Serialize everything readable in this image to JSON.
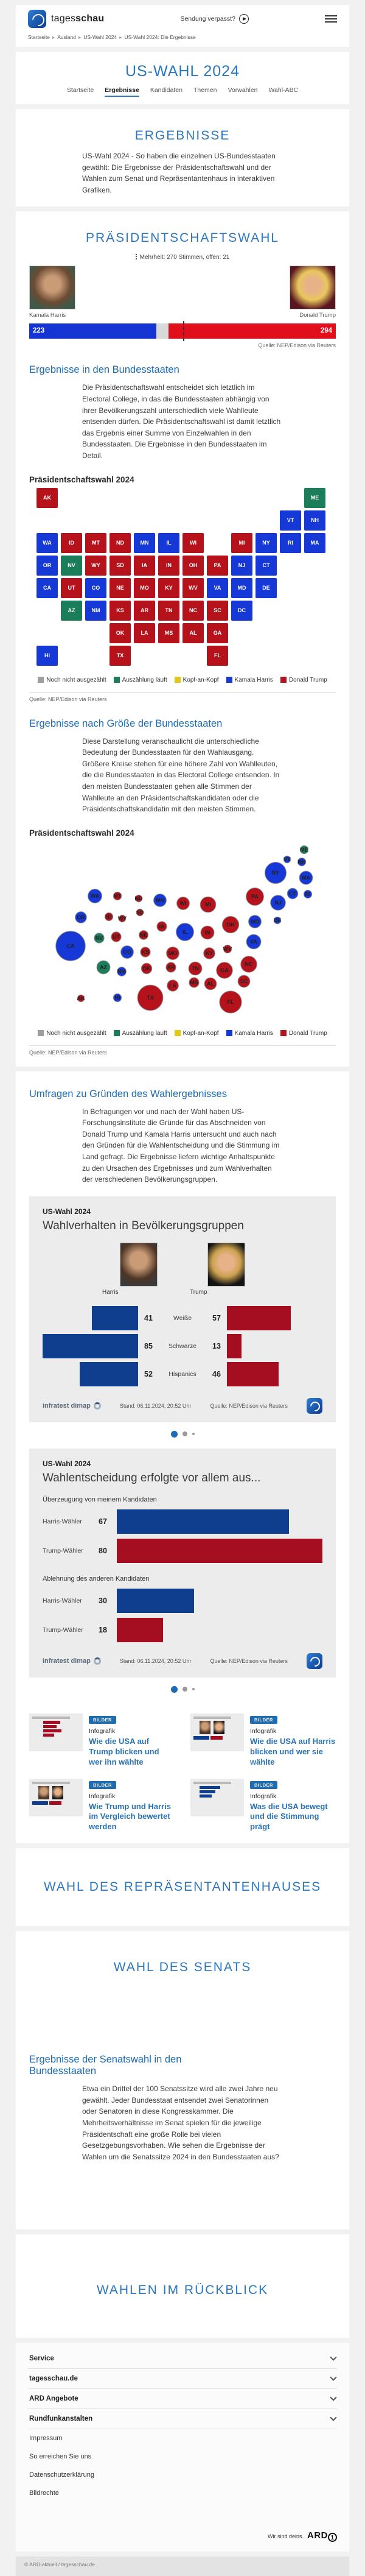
{
  "header": {
    "wordmark_light": "tages",
    "wordmark_bold": "schau",
    "watch_label": "Sendung verpasst?"
  },
  "breadcrumb": [
    "Startseite",
    "Ausland",
    "US-Wahl 2024",
    "US-Wahl 2024: Die Ergebnisse"
  ],
  "page_title": "US-WAHL 2024",
  "subnav": [
    {
      "label": "Startseite",
      "active": false
    },
    {
      "label": "Ergebnisse",
      "active": true
    },
    {
      "label": "Kandidaten",
      "active": false
    },
    {
      "label": "Themen",
      "active": false
    },
    {
      "label": "Vorwahlen",
      "active": false
    },
    {
      "label": "Wahl-ABC",
      "active": false
    }
  ],
  "ergebnisse": {
    "heading": "ERGEBNISSE",
    "intro": "US-Wahl 2024 - So haben die einzelnen US-Bundesstaaten gewählt: Die Ergebnisse der Präsidentschaftswahl und der Wahlen zum Senat und Repräsentantenhaus in interaktiven Grafiken."
  },
  "praesidentschaftswahl": {
    "heading": "PRÄSIDENTSCHAFTSWAHL",
    "majority_note": "Mehrheit: 270 Stimmen, offen: 21",
    "harris_name": "Kamala Harris",
    "trump_name": "Donald Trump",
    "source": "Quelle: NEP/Edison via Reuters",
    "states_heading": "Ergebnisse in den Bundesstaaten",
    "states_text": "Die Präsidentschaftswahl entscheidet sich letztlich im Electoral College, in das die Bundesstaaten abhängig von ihrer Bevölkerungszahl unterschiedlich viele Wahlleute entsenden dürfen. Die Präsidentschaftswahl ist damit letztlich das Ergebnis einer Summe von Einzelwahlen in den Bundesstaaten. Die Ergebnisse in den Bundesstaaten im Detail.",
    "map_title": "Präsidentschaftswahl 2024",
    "size_heading": "Ergebnisse nach Größe der Bundesstaaten",
    "size_text": "Diese Darstellung veranschaulicht die unterschiedliche Bedeutung der Bundesstaaten für den Wahlausgang. Größere Kreise stehen für eine höhere Zahl von Wahlleuten, die die Bundesstaaten in das Electoral College entsenden. In den meisten Bundesstaaten gehen alle Stimmen der Wahlleute an den Präsidentschaftskandidaten oder die Präsidentschaftskandidatin mit den meisten Stimmen.",
    "bubble_title": "Präsidentschaftswahl 2024"
  },
  "umfragen": {
    "heading": "Umfragen zu Gründen des Wahlergebnisses",
    "text": "In Befragungen vor und nach der Wahl haben US-Forschungsinstitute die Gründe für das Abschneiden von Donald Trump und Kamala Harris untersucht und auch nach den Gründen für die Wahlentscheidung und die Stimmung im Land gefragt. Die Ergebnisse liefern wichtige Anhaltspunkte zu den Ursachen des Ergebnisses und zum Wahlverhalten der verschiedenen Bevölkerungsgruppen."
  },
  "infographic1": {
    "kicker": "US-Wahl 2024",
    "title": "Wahlverhalten in Bevölkerungsgruppen",
    "harris_label": "Harris",
    "trump_label": "Trump",
    "stand": "Stand:  06.11.2024, 20:52 Uhr",
    "quelle": "Quelle: NEP/Edison via Reuters",
    "brand": "infratest dimap"
  },
  "infographic2": {
    "kicker": "US-Wahl 2024",
    "title": "Wahlentscheidung erfolgte vor allem aus...",
    "stand": "Stand:  06.11.2024, 20:52 Uhr",
    "quelle": "Quelle: NEP/Edison via Reuters",
    "brand": "infratest dimap"
  },
  "teasers": [
    {
      "badge": "BILDER",
      "category": "Infografik",
      "title": "Wie die USA auf Trump blicken und wer ihn wählte",
      "thumb": "bars"
    },
    {
      "badge": "BILDER",
      "category": "Infografik",
      "title": "Wie die USA auf Harris blicken und wer sie wählte",
      "thumb": "photos"
    },
    {
      "badge": "BILDER",
      "category": "Infografik",
      "title": "Wie Trump und Harris im Vergleich bewertet werden",
      "thumb": "compare"
    },
    {
      "badge": "BILDER",
      "category": "Infografik",
      "title": "Was die USA bewegt und die Stimmung prägt",
      "thumb": "mood"
    }
  ],
  "haus": {
    "heading": "WAHL DES REPRÄSENTANTENHAUSES"
  },
  "senat": {
    "heading": "WAHL DES SENATS",
    "sub_heading": "Ergebnisse der Senatswahl in den Bundesstaaten",
    "text": "Etwa ein Drittel der 100 Senatssitze wird alle zwei Jahre neu gewählt. Jeder Bundesstaat entsendet zwei Senatorinnen oder Senatoren in diese Kongresskammer. Die Mehrheitsverhältnisse im Senat spielen für die jeweilige Präsidentschaft eine große Rolle bei vielen Gesetzgebungsvorhaben. Wie sehen die Ergebnisse der Wahlen um die Senatssitze 2024 in den Bundesstaaten aus?"
  },
  "rueckblick": {
    "heading": "WAHLEN IM RÜCKBLICK"
  },
  "footer": {
    "accordions": [
      "Service",
      "tagesschau.de",
      "ARD Angebote",
      "Rundfunkanstalten"
    ],
    "links": [
      "Impressum",
      "So erreichen Sie uns",
      "Datenschutzerklärung",
      "Bildrechte"
    ],
    "ard_tagline": "Wir sind deins.",
    "ard_logo": "ARD",
    "copyright": "© ARD-aktuell / tagesschau.de"
  },
  "colors": {
    "harris": "#1538d6",
    "harris_bar": "#1435d1",
    "trump": "#b5121b",
    "trump_bar": "#e10e1b",
    "counting": "#1b7e5a",
    "tossup": "#e5c713",
    "uncounted": "#9e9e9e",
    "open_gap": "#d9d9d9",
    "ig_blue": "#0e3e8d",
    "ig_red": "#a50d20"
  },
  "chart_data": [
    {
      "type": "bar",
      "title": "Electoral College Ergebnis",
      "categories": [
        "Kamala Harris",
        "offen",
        "Donald Trump"
      ],
      "values": [
        223,
        21,
        294
      ],
      "total": 538,
      "majority_marker": 270
    },
    {
      "type": "heatmap",
      "title": "Präsidentschaftswahl 2024 — Karte der Bundesstaaten",
      "legend": [
        {
          "label": "Noch nicht ausgezählt",
          "key": "uncounted"
        },
        {
          "label": "Auszählung läuft",
          "key": "counting"
        },
        {
          "label": "Kopf-an-Kopf",
          "key": "tossup"
        },
        {
          "label": "Kamala Harris",
          "key": "harris"
        },
        {
          "label": "Donald Trump",
          "key": "trump"
        }
      ],
      "states": [
        {
          "abbr": "AK",
          "party": "trump",
          "ev": 3,
          "grid": [
            0,
            0
          ],
          "bubble": [
            85,
            258,
            "s"
          ]
        },
        {
          "abbr": "ME",
          "party": "counting",
          "ev": 4,
          "grid": [
            11,
            0
          ],
          "bubble": [
            452,
            14,
            "s"
          ]
        },
        {
          "abbr": "VT",
          "party": "harris",
          "ev": 3,
          "grid": [
            10,
            1
          ],
          "bubble": [
            424,
            30,
            "s"
          ]
        },
        {
          "abbr": "NH",
          "party": "harris",
          "ev": 4,
          "grid": [
            11,
            1
          ],
          "bubble": [
            448,
            34,
            "s"
          ]
        },
        {
          "abbr": "WA",
          "party": "harris",
          "ev": 12,
          "grid": [
            0,
            2
          ],
          "bubble": [
            108,
            90,
            "m"
          ]
        },
        {
          "abbr": "ID",
          "party": "trump",
          "ev": 4,
          "grid": [
            1,
            2
          ],
          "bubble": [
            131,
            124,
            "s"
          ]
        },
        {
          "abbr": "MT",
          "party": "trump",
          "ev": 4,
          "grid": [
            2,
            2
          ],
          "bubble": [
            145,
            90,
            "s"
          ]
        },
        {
          "abbr": "ND",
          "party": "trump",
          "ev": 3,
          "grid": [
            3,
            2
          ],
          "bubble": [
            180,
            94,
            "s"
          ]
        },
        {
          "abbr": "MN",
          "party": "harris",
          "ev": 10,
          "grid": [
            4,
            2
          ],
          "bubble": [
            215,
            97,
            "m"
          ]
        },
        {
          "abbr": "IL",
          "party": "harris",
          "ev": 19,
          "grid": [
            5,
            2
          ],
          "bubble": [
            256,
            149,
            "m"
          ]
        },
        {
          "abbr": "WI",
          "party": "trump",
          "ev": 10,
          "grid": [
            6,
            2
          ],
          "bubble": [
            253,
            102,
            "m"
          ]
        },
        {
          "abbr": "MI",
          "party": "trump",
          "ev": 15,
          "grid": [
            8,
            2
          ],
          "bubble": [
            294,
            104,
            "l"
          ]
        },
        {
          "abbr": "NY",
          "party": "harris",
          "ev": 28,
          "grid": [
            9,
            2
          ],
          "bubble": [
            405,
            52,
            "xl"
          ]
        },
        {
          "abbr": "RI",
          "party": "harris",
          "ev": 4,
          "grid": [
            10,
            2
          ],
          "bubble": [
            458,
            87,
            "s"
          ]
        },
        {
          "abbr": "MA",
          "party": "harris",
          "ev": 11,
          "grid": [
            11,
            2
          ],
          "bubble": [
            455,
            60,
            "m"
          ]
        },
        {
          "abbr": "OR",
          "party": "harris",
          "ev": 8,
          "grid": [
            0,
            3
          ],
          "bubble": [
            85,
            125,
            "m"
          ]
        },
        {
          "abbr": "NV",
          "party": "counting",
          "ev": 6,
          "grid": [
            1,
            3
          ],
          "bubble": [
            115,
            159,
            "m"
          ]
        },
        {
          "abbr": "WY",
          "party": "trump",
          "ev": 3,
          "grid": [
            2,
            3
          ],
          "bubble": [
            153,
            127,
            "s"
          ]
        },
        {
          "abbr": "SD",
          "party": "trump",
          "ev": 3,
          "grid": [
            3,
            3
          ],
          "bubble": [
            182,
            117,
            "s"
          ]
        },
        {
          "abbr": "IA",
          "party": "trump",
          "ev": 6,
          "grid": [
            4,
            3
          ],
          "bubble": [
            218,
            140,
            "m"
          ]
        },
        {
          "abbr": "IN",
          "party": "trump",
          "ev": 11,
          "grid": [
            5,
            3
          ],
          "bubble": [
            293,
            150,
            "m"
          ]
        },
        {
          "abbr": "OH",
          "party": "trump",
          "ev": 17,
          "grid": [
            6,
            3
          ],
          "bubble": [
            331,
            137,
            "l"
          ]
        },
        {
          "abbr": "PA",
          "party": "trump",
          "ev": 19,
          "grid": [
            7,
            3
          ],
          "bubble": [
            371,
            91,
            "l"
          ]
        },
        {
          "abbr": "NJ",
          "party": "harris",
          "ev": 14,
          "grid": [
            8,
            3
          ],
          "bubble": [
            409,
            101,
            "m"
          ]
        },
        {
          "abbr": "CT",
          "party": "harris",
          "ev": 7,
          "grid": [
            9,
            3
          ],
          "bubble": [
            433,
            86,
            "m"
          ]
        },
        {
          "abbr": "CA",
          "party": "harris",
          "ev": 54,
          "grid": [
            0,
            4
          ],
          "bubble": [
            68,
            172,
            "xxl"
          ]
        },
        {
          "abbr": "UT",
          "party": "trump",
          "ev": 6,
          "grid": [
            1,
            4
          ],
          "bubble": [
            143,
            157,
            "m"
          ]
        },
        {
          "abbr": "CO",
          "party": "harris",
          "ev": 10,
          "grid": [
            2,
            4
          ],
          "bubble": [
            161,
            182,
            "m"
          ]
        },
        {
          "abbr": "NE",
          "party": "trump",
          "ev": 5,
          "grid": [
            3,
            4
          ],
          "bubble": [
            188,
            154,
            "s"
          ]
        },
        {
          "abbr": "MO",
          "party": "trump",
          "ev": 10,
          "grid": [
            4,
            4
          ],
          "bubble": [
            236,
            184,
            "m"
          ]
        },
        {
          "abbr": "KY",
          "party": "trump",
          "ev": 8,
          "grid": [
            5,
            4
          ],
          "bubble": [
            296,
            184,
            "m"
          ]
        },
        {
          "abbr": "WV",
          "party": "trump",
          "ev": 4,
          "grid": [
            6,
            4
          ],
          "bubble": [
            326,
            177,
            "s"
          ]
        },
        {
          "abbr": "VA",
          "party": "harris",
          "ev": 13,
          "grid": [
            7,
            4
          ],
          "bubble": [
            369,
            165,
            "l"
          ]
        },
        {
          "abbr": "MD",
          "party": "harris",
          "ev": 10,
          "grid": [
            8,
            4
          ],
          "bubble": [
            371,
            132,
            "m"
          ]
        },
        {
          "abbr": "DE",
          "party": "harris",
          "ev": 3,
          "grid": [
            9,
            4
          ],
          "bubble": [
            408,
            130,
            "s"
          ]
        },
        {
          "abbr": "AZ",
          "party": "counting",
          "ev": 11,
          "grid": [
            1,
            5
          ],
          "bubble": [
            122,
            207,
            "l"
          ]
        },
        {
          "abbr": "NM",
          "party": "harris",
          "ev": 5,
          "grid": [
            2,
            5
          ],
          "bubble": [
            152,
            214,
            "m"
          ]
        },
        {
          "abbr": "KS",
          "party": "trump",
          "ev": 6,
          "grid": [
            3,
            5
          ],
          "bubble": [
            191,
            182,
            "m"
          ]
        },
        {
          "abbr": "AR",
          "party": "trump",
          "ev": 6,
          "grid": [
            4,
            5
          ],
          "bubble": [
            233,
            207,
            "m"
          ]
        },
        {
          "abbr": "TN",
          "party": "trump",
          "ev": 11,
          "grid": [
            5,
            5
          ],
          "bubble": [
            273,
            209,
            "m"
          ]
        },
        {
          "abbr": "NC",
          "party": "trump",
          "ev": 16,
          "grid": [
            6,
            5
          ],
          "bubble": [
            361,
            202,
            "l"
          ]
        },
        {
          "abbr": "SC",
          "party": "trump",
          "ev": 9,
          "grid": [
            7,
            5
          ],
          "bubble": [
            353,
            230,
            "m"
          ]
        },
        {
          "abbr": "DC",
          "party": "harris",
          "ev": 3,
          "grid": [
            8,
            5
          ],
          "bubble": null
        },
        {
          "abbr": "OK",
          "party": "trump",
          "ev": 7,
          "grid": [
            3,
            6
          ],
          "bubble": [
            193,
            209,
            "m"
          ]
        },
        {
          "abbr": "LA",
          "party": "trump",
          "ev": 8,
          "grid": [
            4,
            6
          ],
          "bubble": [
            236,
            237,
            "m"
          ]
        },
        {
          "abbr": "MS",
          "party": "trump",
          "ev": 6,
          "grid": [
            5,
            6
          ],
          "bubble": [
            271,
            232,
            "s"
          ]
        },
        {
          "abbr": "AL",
          "party": "trump",
          "ev": 9,
          "grid": [
            6,
            6
          ],
          "bubble": [
            298,
            234,
            "m"
          ]
        },
        {
          "abbr": "GA",
          "party": "trump",
          "ev": 16,
          "grid": [
            7,
            6
          ],
          "bubble": [
            321,
            212,
            "l"
          ]
        },
        {
          "abbr": "HI",
          "party": "harris",
          "ev": 4,
          "grid": [
            0,
            7
          ],
          "bubble": [
            145,
            257,
            "s"
          ]
        },
        {
          "abbr": "TX",
          "party": "trump",
          "ev": 40,
          "grid": [
            3,
            7
          ],
          "bubble": [
            199,
            257,
            "xxl"
          ]
        },
        {
          "abbr": "FL",
          "party": "trump",
          "ev": 30,
          "grid": [
            7,
            7
          ],
          "bubble": [
            331,
            264,
            "xl"
          ]
        }
      ]
    },
    {
      "type": "bar",
      "title": "Wahlverhalten in Bevölkerungsgruppen",
      "categories": [
        "Weiße",
        "Schwarze",
        "Hispanics"
      ],
      "series": [
        {
          "name": "Harris",
          "values": [
            41,
            85,
            52
          ]
        },
        {
          "name": "Trump",
          "values": [
            57,
            13,
            46
          ]
        }
      ],
      "scale_max": 85
    },
    {
      "type": "bar",
      "title": "Wahlentscheidung erfolgte vor allem aus...",
      "groups": [
        {
          "label": "Überzeugung von meinem Kandidaten",
          "rows": [
            {
              "label": "Harris-Wähler",
              "value": 67,
              "color_key": "ig_blue"
            },
            {
              "label": "Trump-Wähler",
              "value": 80,
              "color_key": "ig_red"
            }
          ]
        },
        {
          "label": "Ablehnung des anderen Kandidaten",
          "rows": [
            {
              "label": "Harris-Wähler",
              "value": 30,
              "color_key": "ig_blue"
            },
            {
              "label": "Trump-Wähler",
              "value": 18,
              "color_key": "ig_red"
            }
          ]
        }
      ],
      "scale_max": 80
    }
  ]
}
